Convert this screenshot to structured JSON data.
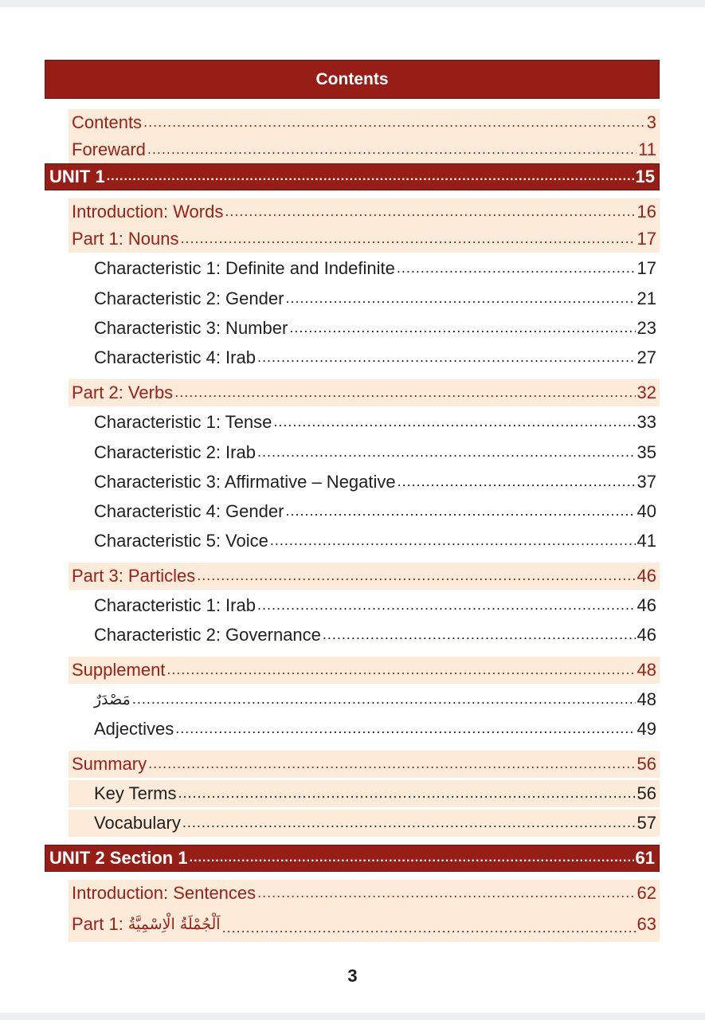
{
  "title": "Contents",
  "page_number": "3",
  "dots": "........................................................................................................................................................................................................",
  "entries": [
    {
      "label": "Contents",
      "page": "3"
    },
    {
      "label": "Foreward",
      "page": "11"
    },
    {
      "label": "UNIT 1",
      "page": "15"
    },
    {
      "label": "Introduction: Words",
      "page": "16"
    },
    {
      "label": "Part 1: Nouns",
      "page": "17"
    },
    {
      "label": "Characteristic 1: Definite and Indefinite",
      "page": "17"
    },
    {
      "label": "Characteristic 2: Gender",
      "page": "21"
    },
    {
      "label": "Characteristic 3: Number",
      "page": "23"
    },
    {
      "label": "Characteristic 4: Irab",
      "page": "27"
    },
    {
      "label": "Part 2: Verbs",
      "page": "32"
    },
    {
      "label": "Characteristic 1: Tense",
      "page": "33"
    },
    {
      "label": "Characteristic 2: Irab",
      "page": "35"
    },
    {
      "label": "Characteristic 3: Affirmative – Negative",
      "page": "37"
    },
    {
      "label": "Characteristic 4: Gender",
      "page": "40"
    },
    {
      "label": "Characteristic 5: Voice",
      "page": "41"
    },
    {
      "label": "Part 3: Particles",
      "page": "46"
    },
    {
      "label": "Characteristic 1: Irab",
      "page": "46"
    },
    {
      "label": "Characteristic 2: Governance",
      "page": "46"
    },
    {
      "label": "Supplement",
      "page": "48"
    },
    {
      "label": "مَصْدَرٌ",
      "page": "48"
    },
    {
      "label": "Adjectives",
      "page": "49"
    },
    {
      "label": "Summary",
      "page": "56"
    },
    {
      "label": "Key Terms",
      "page": "56"
    },
    {
      "label": "Vocabulary",
      "page": "57"
    },
    {
      "label": "UNIT 2 Section 1",
      "page": "61"
    },
    {
      "label": "Introduction: Sentences",
      "page": "62"
    },
    {
      "label_prefix": "Part 1: ",
      "label_arabic": "اَلْجُمْلَةُ الْاِسْمِيَّةُ",
      "page": "63"
    }
  ]
}
